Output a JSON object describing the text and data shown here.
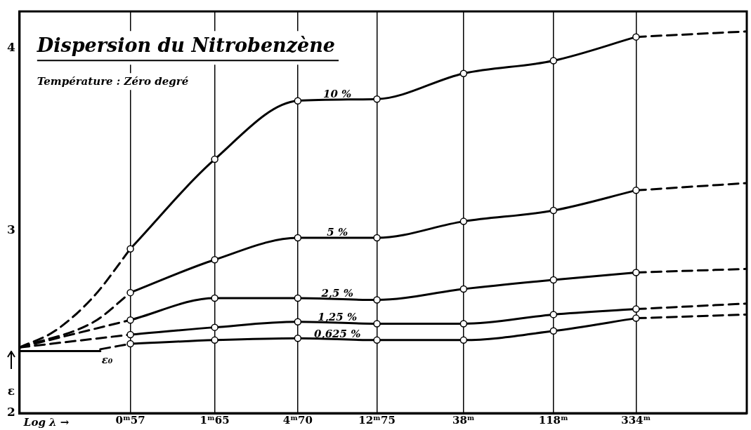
{
  "chart_data": {
    "type": "line",
    "title": "Dispersion du Nitrobenzène",
    "subtitle": "Température : Zéro degré",
    "xlabel": "Log λ →",
    "ylabel": "ε",
    "x": [
      0.57,
      1.65,
      4.7,
      12.75,
      38,
      118,
      334
    ],
    "xlim": [
      0.141,
      1349
    ],
    "ylim": [
      2,
      4.2
    ],
    "yticks": [
      2,
      3,
      4
    ],
    "xticks": [
      {
        "value": 0.57,
        "label": "0ᵐ57"
      },
      {
        "value": 1.65,
        "label": "1ᵐ65"
      },
      {
        "value": 4.7,
        "label": "4ᵐ70"
      },
      {
        "value": 12.75,
        "label": "12ᵐ75"
      },
      {
        "value": 38,
        "label": "38ᵐ"
      },
      {
        "value": 118,
        "label": "118ᵐ"
      },
      {
        "value": 334,
        "label": "334ᵐ"
      }
    ],
    "grid": "x",
    "legend": false,
    "log": "x",
    "series": [
      {
        "name": "10 %",
        "color": "#000000",
        "marker": "circle",
        "values": [
          2.9,
          3.39,
          3.71,
          3.72,
          3.86,
          3.93,
          4.06
        ]
      },
      {
        "name": "5 %",
        "color": "#000000",
        "marker": "circle",
        "values": [
          2.66,
          2.84,
          2.96,
          2.96,
          3.05,
          3.11,
          3.22
        ]
      },
      {
        "name": "2,5 %",
        "color": "#000000",
        "marker": "circle",
        "values": [
          2.51,
          2.63,
          2.63,
          2.62,
          2.68,
          2.73,
          2.77
        ]
      },
      {
        "name": "1,25 %",
        "color": "#000000",
        "marker": "circle",
        "values": [
          2.43,
          2.47,
          2.5,
          2.49,
          2.49,
          2.54,
          2.57
        ]
      },
      {
        "name": "0,625 %",
        "color": "#000000",
        "marker": "circle",
        "values": [
          2.38,
          2.4,
          2.41,
          2.4,
          2.4,
          2.45,
          2.52
        ]
      },
      {
        "name": "ε₀",
        "color": "#000000",
        "marker": "none",
        "x": [
          0.141,
          0.39
        ],
        "values": [
          2.34,
          2.34
        ]
      },
      {
        "color": "#000000",
        "marker": "none",
        "line_style": "dashed",
        "x": [
          0.141,
          0.22,
          0.36,
          0.57
        ],
        "values": [
          2.36,
          2.45,
          2.64,
          2.9
        ]
      },
      {
        "color": "#000000",
        "marker": "none",
        "line_style": "dashed",
        "x": [
          0.141,
          0.36,
          0.57
        ],
        "values": [
          2.36,
          2.5,
          2.66
        ]
      },
      {
        "color": "#000000",
        "marker": "none",
        "line_style": "dashed",
        "x": [
          0.141,
          0.57
        ],
        "values": [
          2.36,
          2.51
        ]
      },
      {
        "color": "#000000",
        "marker": "none",
        "line_style": "dashed",
        "x": [
          0.141,
          0.57
        ],
        "values": [
          2.36,
          2.43
        ]
      },
      {
        "color": "#000000",
        "marker": "none",
        "line_style": "dashed",
        "x": [
          0.39,
          0.57
        ],
        "values": [
          2.35,
          2.38
        ]
      },
      {
        "color": "#000000",
        "marker": "none",
        "line_style": "dashed",
        "x": [
          334,
          1349
        ],
        "values": [
          4.06,
          4.09
        ]
      },
      {
        "color": "#000000",
        "marker": "none",
        "line_style": "dashed",
        "x": [
          334,
          1349
        ],
        "values": [
          3.22,
          3.26
        ]
      },
      {
        "color": "#000000",
        "marker": "none",
        "line_style": "dashed",
        "x": [
          334,
          1349
        ],
        "values": [
          2.77,
          2.79
        ]
      },
      {
        "color": "#000000",
        "marker": "none",
        "line_style": "dashed",
        "x": [
          334,
          1349
        ],
        "values": [
          2.57,
          2.6
        ]
      },
      {
        "color": "#000000",
        "marker": "none",
        "line_style": "dashed",
        "x": [
          334,
          1349
        ],
        "values": [
          2.52,
          2.54
        ]
      }
    ]
  }
}
